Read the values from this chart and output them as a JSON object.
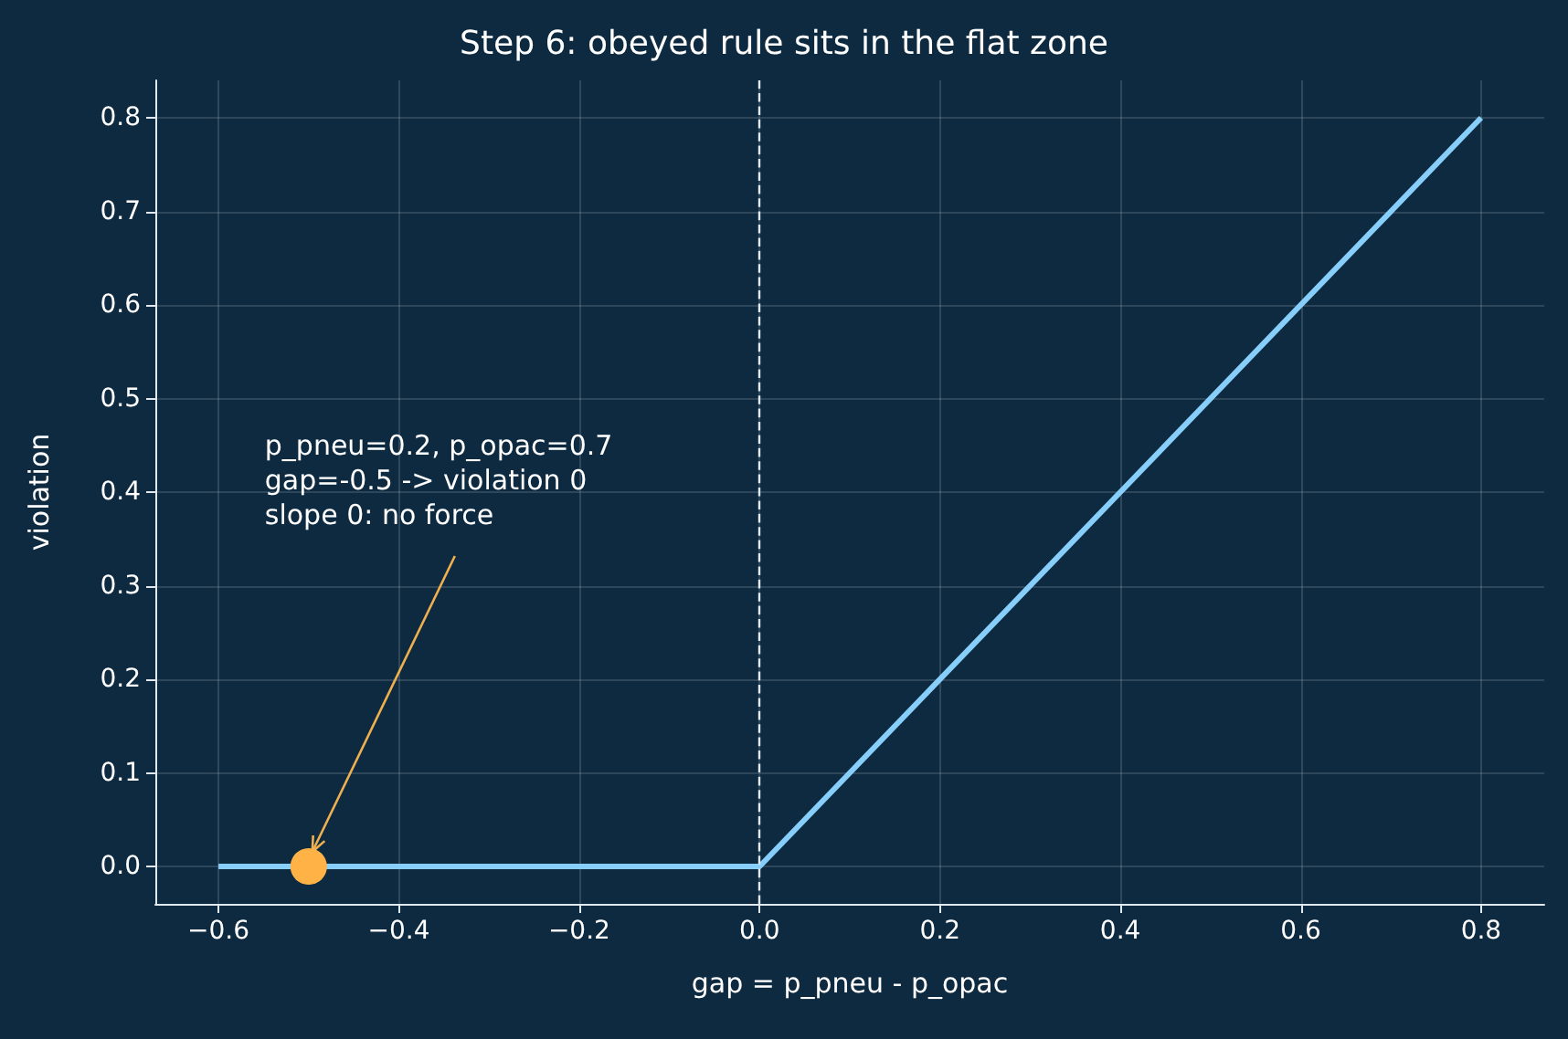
{
  "chart_data": {
    "type": "line",
    "title": "Step 6: obeyed rule sits in the flat zone",
    "xlabel": "gap = p_pneu - p_opac",
    "ylabel": "violation",
    "series": [
      {
        "x": [
          -0.6,
          0,
          0.8
        ],
        "values": [
          0,
          0,
          0.8
        ],
        "color": "#87cefa",
        "marker": "none"
      },
      {
        "type": "scatter",
        "x": [
          -0.5
        ],
        "values": [
          0
        ],
        "color": "#ffb347",
        "marker": "circle"
      }
    ],
    "xlim": [
      -0.67,
      0.87
    ],
    "ylim": [
      -0.04,
      0.84
    ],
    "xticks": [
      {
        "value": -0.6,
        "label": "−0.6"
      },
      {
        "value": -0.4,
        "label": "−0.4"
      },
      {
        "value": -0.2,
        "label": "−0.2"
      },
      {
        "value": 0,
        "label": "0.0"
      },
      {
        "value": 0.2,
        "label": "0.2"
      },
      {
        "value": 0.4,
        "label": "0.4"
      },
      {
        "value": 0.6,
        "label": "0.6"
      },
      {
        "value": 0.8,
        "label": "0.8"
      }
    ],
    "yticks": [
      {
        "value": 0,
        "label": "0.0"
      },
      0.1,
      0.2,
      0.3,
      0.4,
      0.5,
      0.6,
      0.7,
      0.8
    ],
    "ref_lines": [
      {
        "axis": "x",
        "value": 0,
        "color": "#e0e8f0",
        "line_style": "dashed"
      }
    ],
    "annotations": [
      {
        "text": "p_pneu=0.2, p_opac=0.7\ngap=-0.5 -> violation 0\nslope 0: no force",
        "x": -0.5,
        "y": 0
      }
    ],
    "grid": true
  }
}
